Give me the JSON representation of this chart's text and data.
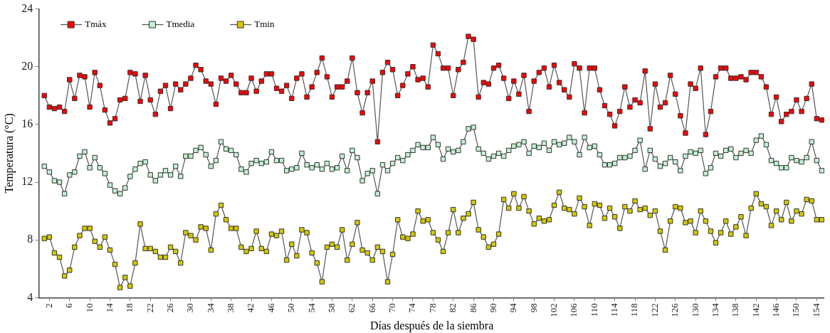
{
  "chart_data": {
    "type": "line",
    "xlabel": "Días después de la siembra",
    "ylabel": "Temperatura (°C)",
    "x": [
      1,
      2,
      3,
      4,
      5,
      6,
      7,
      8,
      9,
      10,
      11,
      12,
      13,
      14,
      15,
      16,
      17,
      18,
      19,
      20,
      21,
      22,
      23,
      24,
      25,
      26,
      27,
      28,
      29,
      30,
      31,
      32,
      33,
      34,
      35,
      36,
      37,
      38,
      39,
      40,
      41,
      42,
      43,
      44,
      45,
      46,
      47,
      48,
      49,
      50,
      51,
      52,
      53,
      54,
      55,
      56,
      57,
      58,
      59,
      60,
      61,
      62,
      63,
      64,
      65,
      66,
      67,
      68,
      69,
      70,
      71,
      72,
      73,
      74,
      75,
      76,
      77,
      78,
      79,
      80,
      81,
      82,
      83,
      84,
      85,
      86,
      87,
      88,
      89,
      90,
      91,
      92,
      93,
      94,
      95,
      96,
      97,
      98,
      99,
      100,
      101,
      102,
      103,
      104,
      105,
      106,
      107,
      108,
      109,
      110,
      111,
      112,
      113,
      114,
      115,
      116,
      117,
      118,
      119,
      120,
      121,
      122,
      123,
      124,
      125,
      126,
      127,
      128,
      129,
      130,
      131,
      132,
      133,
      134,
      135,
      136,
      137,
      138,
      139,
      140,
      141,
      142,
      143,
      144,
      145,
      146,
      147,
      148,
      149,
      150,
      151,
      152,
      153,
      154,
      155
    ],
    "xlim": [
      0,
      155.5
    ],
    "xticks": [
      2,
      6,
      10,
      14,
      18,
      22,
      26,
      30,
      34,
      38,
      42,
      46,
      50,
      54,
      58,
      62,
      66,
      70,
      74,
      78,
      82,
      86,
      90,
      94,
      98,
      102,
      106,
      110,
      114,
      118,
      122,
      126,
      130,
      134,
      138,
      142,
      146,
      150,
      154
    ],
    "ylim": [
      4,
      24
    ],
    "yticks": [
      4,
      8,
      12,
      16,
      20,
      24
    ],
    "grid": false,
    "legend": "top left",
    "marker": "square",
    "line_style": "solid",
    "series": [
      {
        "name": "Tmáx",
        "color": "#ff0000",
        "values": [
          18.0,
          17.2,
          17.1,
          17.2,
          16.9,
          19.1,
          17.8,
          19.4,
          19.3,
          17.2,
          19.6,
          18.7,
          17.0,
          16.1,
          16.4,
          17.7,
          17.8,
          19.6,
          19.5,
          17.6,
          19.4,
          17.7,
          16.7,
          18.3,
          18.7,
          17.1,
          18.8,
          18.4,
          18.8,
          19.2,
          20.1,
          19.8,
          19.0,
          18.8,
          17.4,
          19.2,
          19.0,
          19.4,
          18.8,
          18.2,
          18.2,
          19.2,
          18.3,
          19.0,
          19.5,
          19.5,
          18.5,
          18.3,
          18.7,
          17.8,
          19.2,
          19.5,
          17.9,
          18.6,
          19.6,
          20.6,
          19.3,
          17.9,
          18.6,
          18.6,
          19.0,
          20.6,
          18.2,
          16.8,
          18.2,
          19.0,
          14.8,
          19.6,
          20.3,
          19.8,
          18.0,
          18.7,
          19.5,
          20.0,
          19.1,
          19.2,
          18.6,
          21.5,
          20.9,
          19.9,
          19.9,
          18.0,
          19.8,
          20.3,
          22.1,
          21.9,
          17.9,
          18.9,
          18.8,
          19.9,
          20.1,
          19.2,
          17.8,
          19.0,
          18.1,
          19.4,
          16.9,
          19.0,
          19.6,
          19.9,
          18.6,
          20.1,
          18.9,
          18.4,
          17.9,
          20.2,
          19.9,
          16.8,
          19.9,
          19.9,
          18.4,
          17.3,
          16.7,
          15.9,
          16.9,
          18.6,
          17.2,
          17.7,
          17.5,
          19.7,
          15.7,
          18.8,
          17.2,
          17.5,
          19.4,
          18.1,
          16.6,
          15.4,
          18.8,
          18.5,
          19.9,
          15.3,
          16.9,
          19.3,
          19.9,
          19.9,
          19.2,
          19.2,
          19.3,
          19.1,
          19.6,
          19.6,
          19.3,
          18.6,
          16.7,
          17.9,
          16.2,
          16.7,
          16.9,
          17.7,
          16.9,
          17.8,
          18.8,
          16.4,
          16.3
        ]
      },
      {
        "name": "Tmedia",
        "color": "#c2f0d0",
        "values": [
          13.1,
          12.7,
          12.1,
          12.0,
          11.2,
          12.5,
          12.7,
          13.8,
          14.1,
          13.0,
          13.7,
          13.0,
          12.6,
          11.8,
          11.4,
          11.2,
          11.6,
          12.4,
          12.9,
          13.3,
          13.4,
          12.5,
          12.1,
          12.5,
          12.8,
          12.5,
          13.1,
          12.4,
          13.8,
          13.8,
          14.2,
          14.4,
          13.9,
          13.1,
          13.5,
          14.8,
          14.3,
          14.2,
          13.9,
          12.9,
          12.7,
          13.3,
          13.5,
          13.3,
          13.4,
          14.1,
          13.5,
          13.5,
          12.8,
          12.9,
          13.0,
          14.0,
          13.2,
          13.0,
          13.2,
          12.9,
          13.3,
          12.9,
          13.0,
          13.8,
          12.8,
          14.2,
          13.7,
          12.1,
          12.6,
          12.8,
          11.2,
          13.2,
          12.8,
          13.3,
          13.7,
          13.5,
          13.9,
          14.2,
          14.6,
          14.4,
          14.4,
          15.1,
          14.6,
          13.6,
          14.3,
          14.1,
          14.2,
          14.8,
          15.7,
          15.8,
          14.3,
          14.0,
          13.6,
          13.8,
          14.0,
          13.8,
          14.2,
          14.5,
          14.6,
          14.8,
          14.0,
          14.5,
          14.4,
          14.7,
          14.2,
          14.8,
          14.6,
          14.7,
          15.1,
          14.8,
          13.9,
          15.1,
          14.4,
          14.5,
          13.9,
          13.2,
          13.2,
          13.3,
          13.7,
          13.7,
          13.8,
          14.2,
          14.9,
          12.9,
          14.2,
          13.6,
          13.1,
          13.3,
          13.7,
          13.4,
          12.8,
          13.8,
          14.1,
          14.0,
          14.2,
          12.6,
          13.0,
          14.0,
          13.8,
          14.2,
          14.3,
          13.7,
          14.0,
          14.2,
          14.0,
          14.9,
          15.2,
          14.6,
          13.5,
          13.3,
          13.0,
          13.0,
          13.7,
          13.5,
          13.4,
          13.7,
          14.8,
          13.5,
          12.8
        ]
      },
      {
        "name": "Tmin",
        "color": "#d4c800",
        "values": [
          8.1,
          8.2,
          7.1,
          6.8,
          5.5,
          5.9,
          7.5,
          8.3,
          8.8,
          8.8,
          7.9,
          7.5,
          8.2,
          7.3,
          6.3,
          4.7,
          5.4,
          4.8,
          6.4,
          9.1,
          7.4,
          7.4,
          7.2,
          6.8,
          6.8,
          7.5,
          7.2,
          6.4,
          8.5,
          8.3,
          8.0,
          8.9,
          8.8,
          7.3,
          9.8,
          10.4,
          9.4,
          8.8,
          8.8,
          7.5,
          7.2,
          7.4,
          8.6,
          7.4,
          7.2,
          8.4,
          8.3,
          8.6,
          6.6,
          7.7,
          6.9,
          8.7,
          8.5,
          7.1,
          6.4,
          5.1,
          7.5,
          7.7,
          7.5,
          8.7,
          6.6,
          7.7,
          9.2,
          7.3,
          7.1,
          6.6,
          7.5,
          7.2,
          5.1,
          7.0,
          9.4,
          8.2,
          8.1,
          8.4,
          10.0,
          9.3,
          9.4,
          8.5,
          8.0,
          7.2,
          8.5,
          10.1,
          8.5,
          9.5,
          9.8,
          10.6,
          8.7,
          8.2,
          7.5,
          7.7,
          8.4,
          10.8,
          10.2,
          11.2,
          10.2,
          11.0,
          10.0,
          9.1,
          9.5,
          9.3,
          9.4,
          10.4,
          11.3,
          10.2,
          10.1,
          9.8,
          10.9,
          10.3,
          9.0,
          10.5,
          10.4,
          9.5,
          10.2,
          9.6,
          8.8,
          10.3,
          10.0,
          10.7,
          10.1,
          10.2,
          9.7,
          10.0,
          8.6,
          7.3,
          9.3,
          10.3,
          10.2,
          9.2,
          9.3,
          8.5,
          10.0,
          9.3,
          8.6,
          7.8,
          8.5,
          9.3,
          8.4,
          8.9,
          9.6,
          8.3,
          10.2,
          11.2,
          10.5,
          10.3,
          9.0,
          10.0,
          9.4,
          10.6,
          9.3,
          10.0,
          9.8,
          10.8,
          10.7,
          9.4,
          9.4
        ]
      }
    ]
  }
}
